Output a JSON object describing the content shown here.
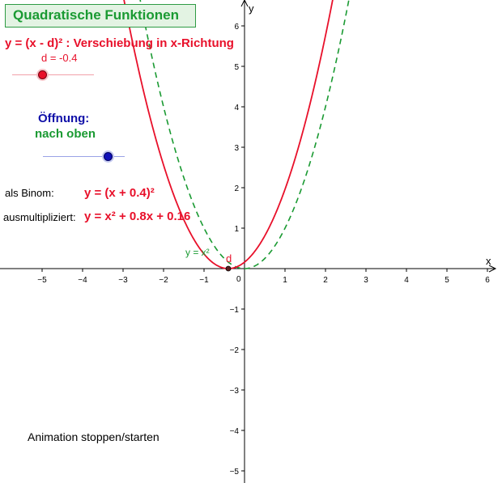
{
  "title": "Quadratische Funktionen",
  "subtitle": "y = (x - d)² : Verschiebung in x-Richtung",
  "d_slider": {
    "label": "d = -0.4",
    "value": -0.4,
    "min": -1.5,
    "max": 1.5,
    "color": "#e8102a"
  },
  "opening": {
    "title": "Öffnung:",
    "value_label": "nach oben",
    "slider_fraction": 0.8
  },
  "binom": {
    "label": "als Binom:",
    "equation": "y =  (x + 0.4)²"
  },
  "expanded": {
    "label": "ausmultipliziert:",
    "equation": "y = x² + 0.8x + 0.16"
  },
  "animation_button": "Animation stoppen/starten",
  "graph": {
    "x_axis_label": "x",
    "y_axis_label": "y",
    "x_ticks": [
      -5,
      -4,
      -3,
      -2,
      -1,
      1,
      2,
      3,
      4,
      5,
      6
    ],
    "y_ticks": [
      -5,
      -4,
      -3,
      -2,
      -1,
      1,
      2,
      3,
      4,
      5,
      6
    ],
    "origin_label": "0",
    "parabola_label": "y = x²",
    "point_label": "d",
    "shift_d": -0.4,
    "colors": {
      "shifted": "#e8102a",
      "reference": "#1a9a32",
      "axes": "#000000"
    }
  }
}
